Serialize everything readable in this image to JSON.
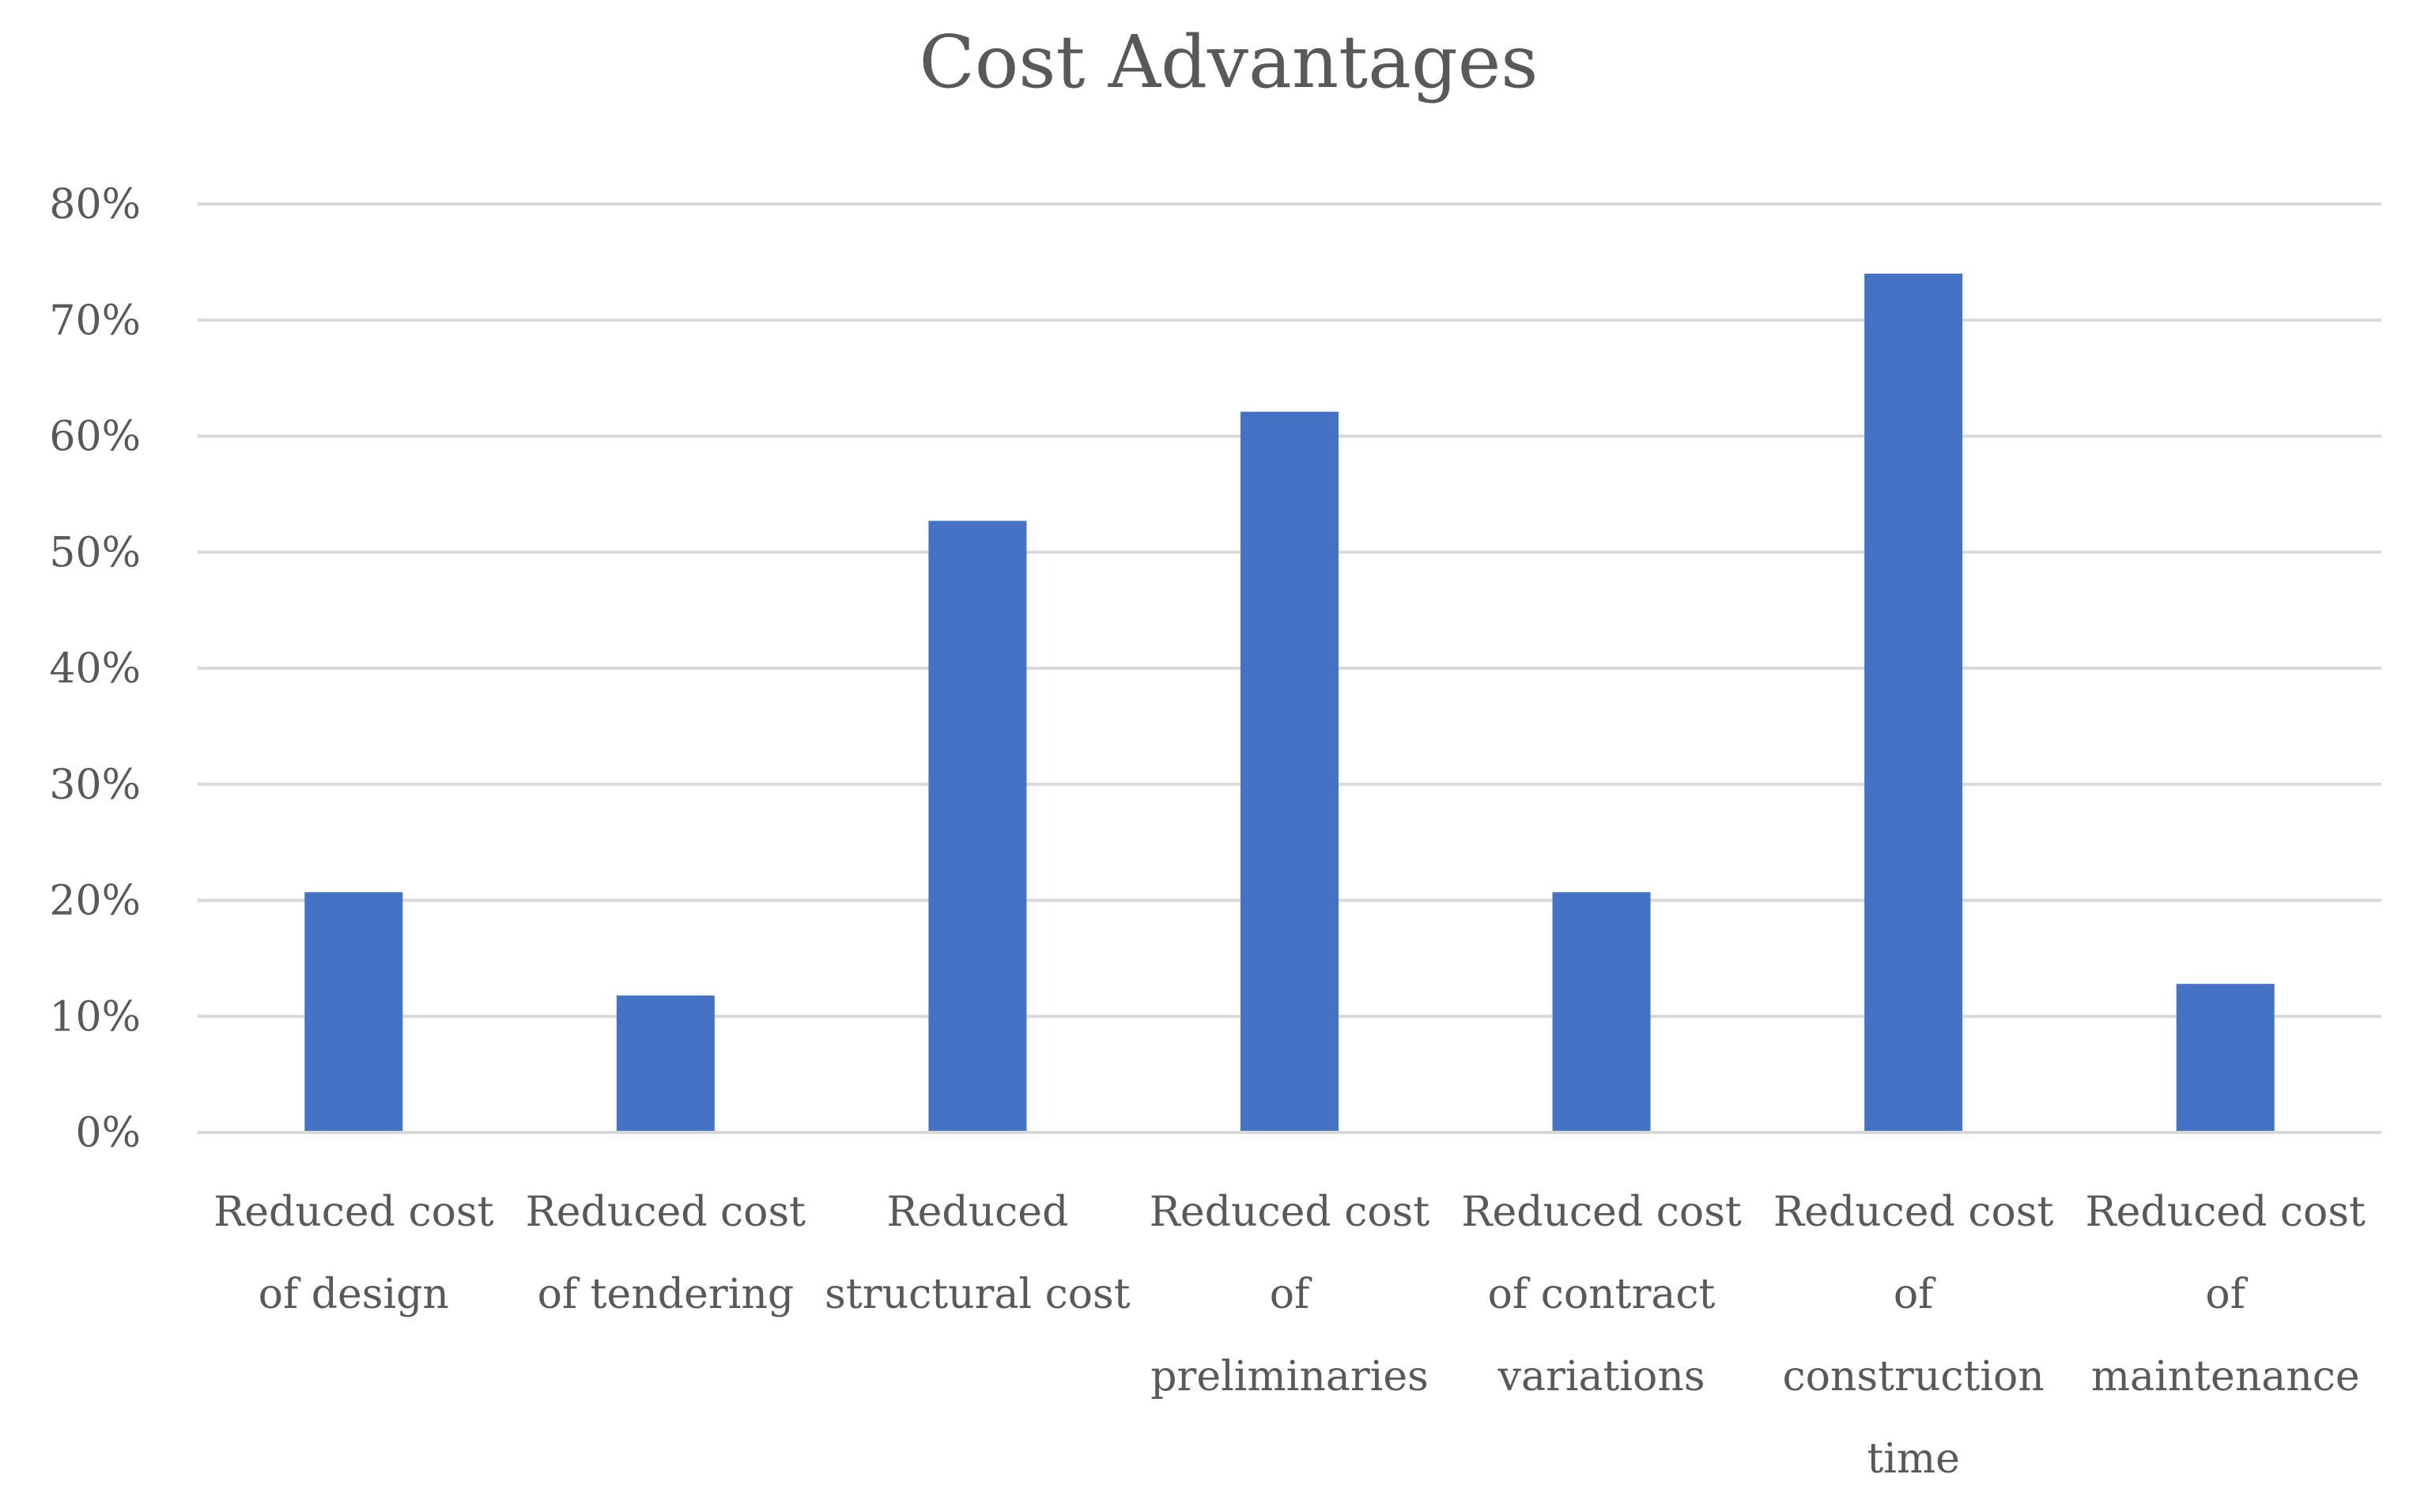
{
  "chart_data": {
    "type": "bar",
    "title": "Cost Advantages",
    "xlabel": "",
    "ylabel": "",
    "ylim": [
      0,
      0.8
    ],
    "yticks": [
      0,
      0.1,
      0.2,
      0.3,
      0.4,
      0.5,
      0.6,
      0.7,
      0.8
    ],
    "ytick_labels": [
      "0%",
      "10%",
      "20%",
      "30%",
      "40%",
      "50%",
      "60%",
      "70%",
      "80%"
    ],
    "grid": true,
    "legend": "none",
    "bar_color": "#4472c4",
    "categories": [
      [
        "Reduced cost",
        "of design"
      ],
      [
        "Reduced cost",
        "of tendering"
      ],
      [
        "Reduced",
        "structural cost"
      ],
      [
        "Reduced cost",
        "of",
        "preliminaries"
      ],
      [
        "Reduced cost",
        "of contract",
        "variations"
      ],
      [
        "Reduced cost",
        "of",
        "construction",
        "time"
      ],
      [
        "Reduced cost",
        "of",
        "maintenance"
      ]
    ],
    "values": [
      0.207,
      0.118,
      0.527,
      0.621,
      0.207,
      0.74,
      0.128
    ]
  }
}
